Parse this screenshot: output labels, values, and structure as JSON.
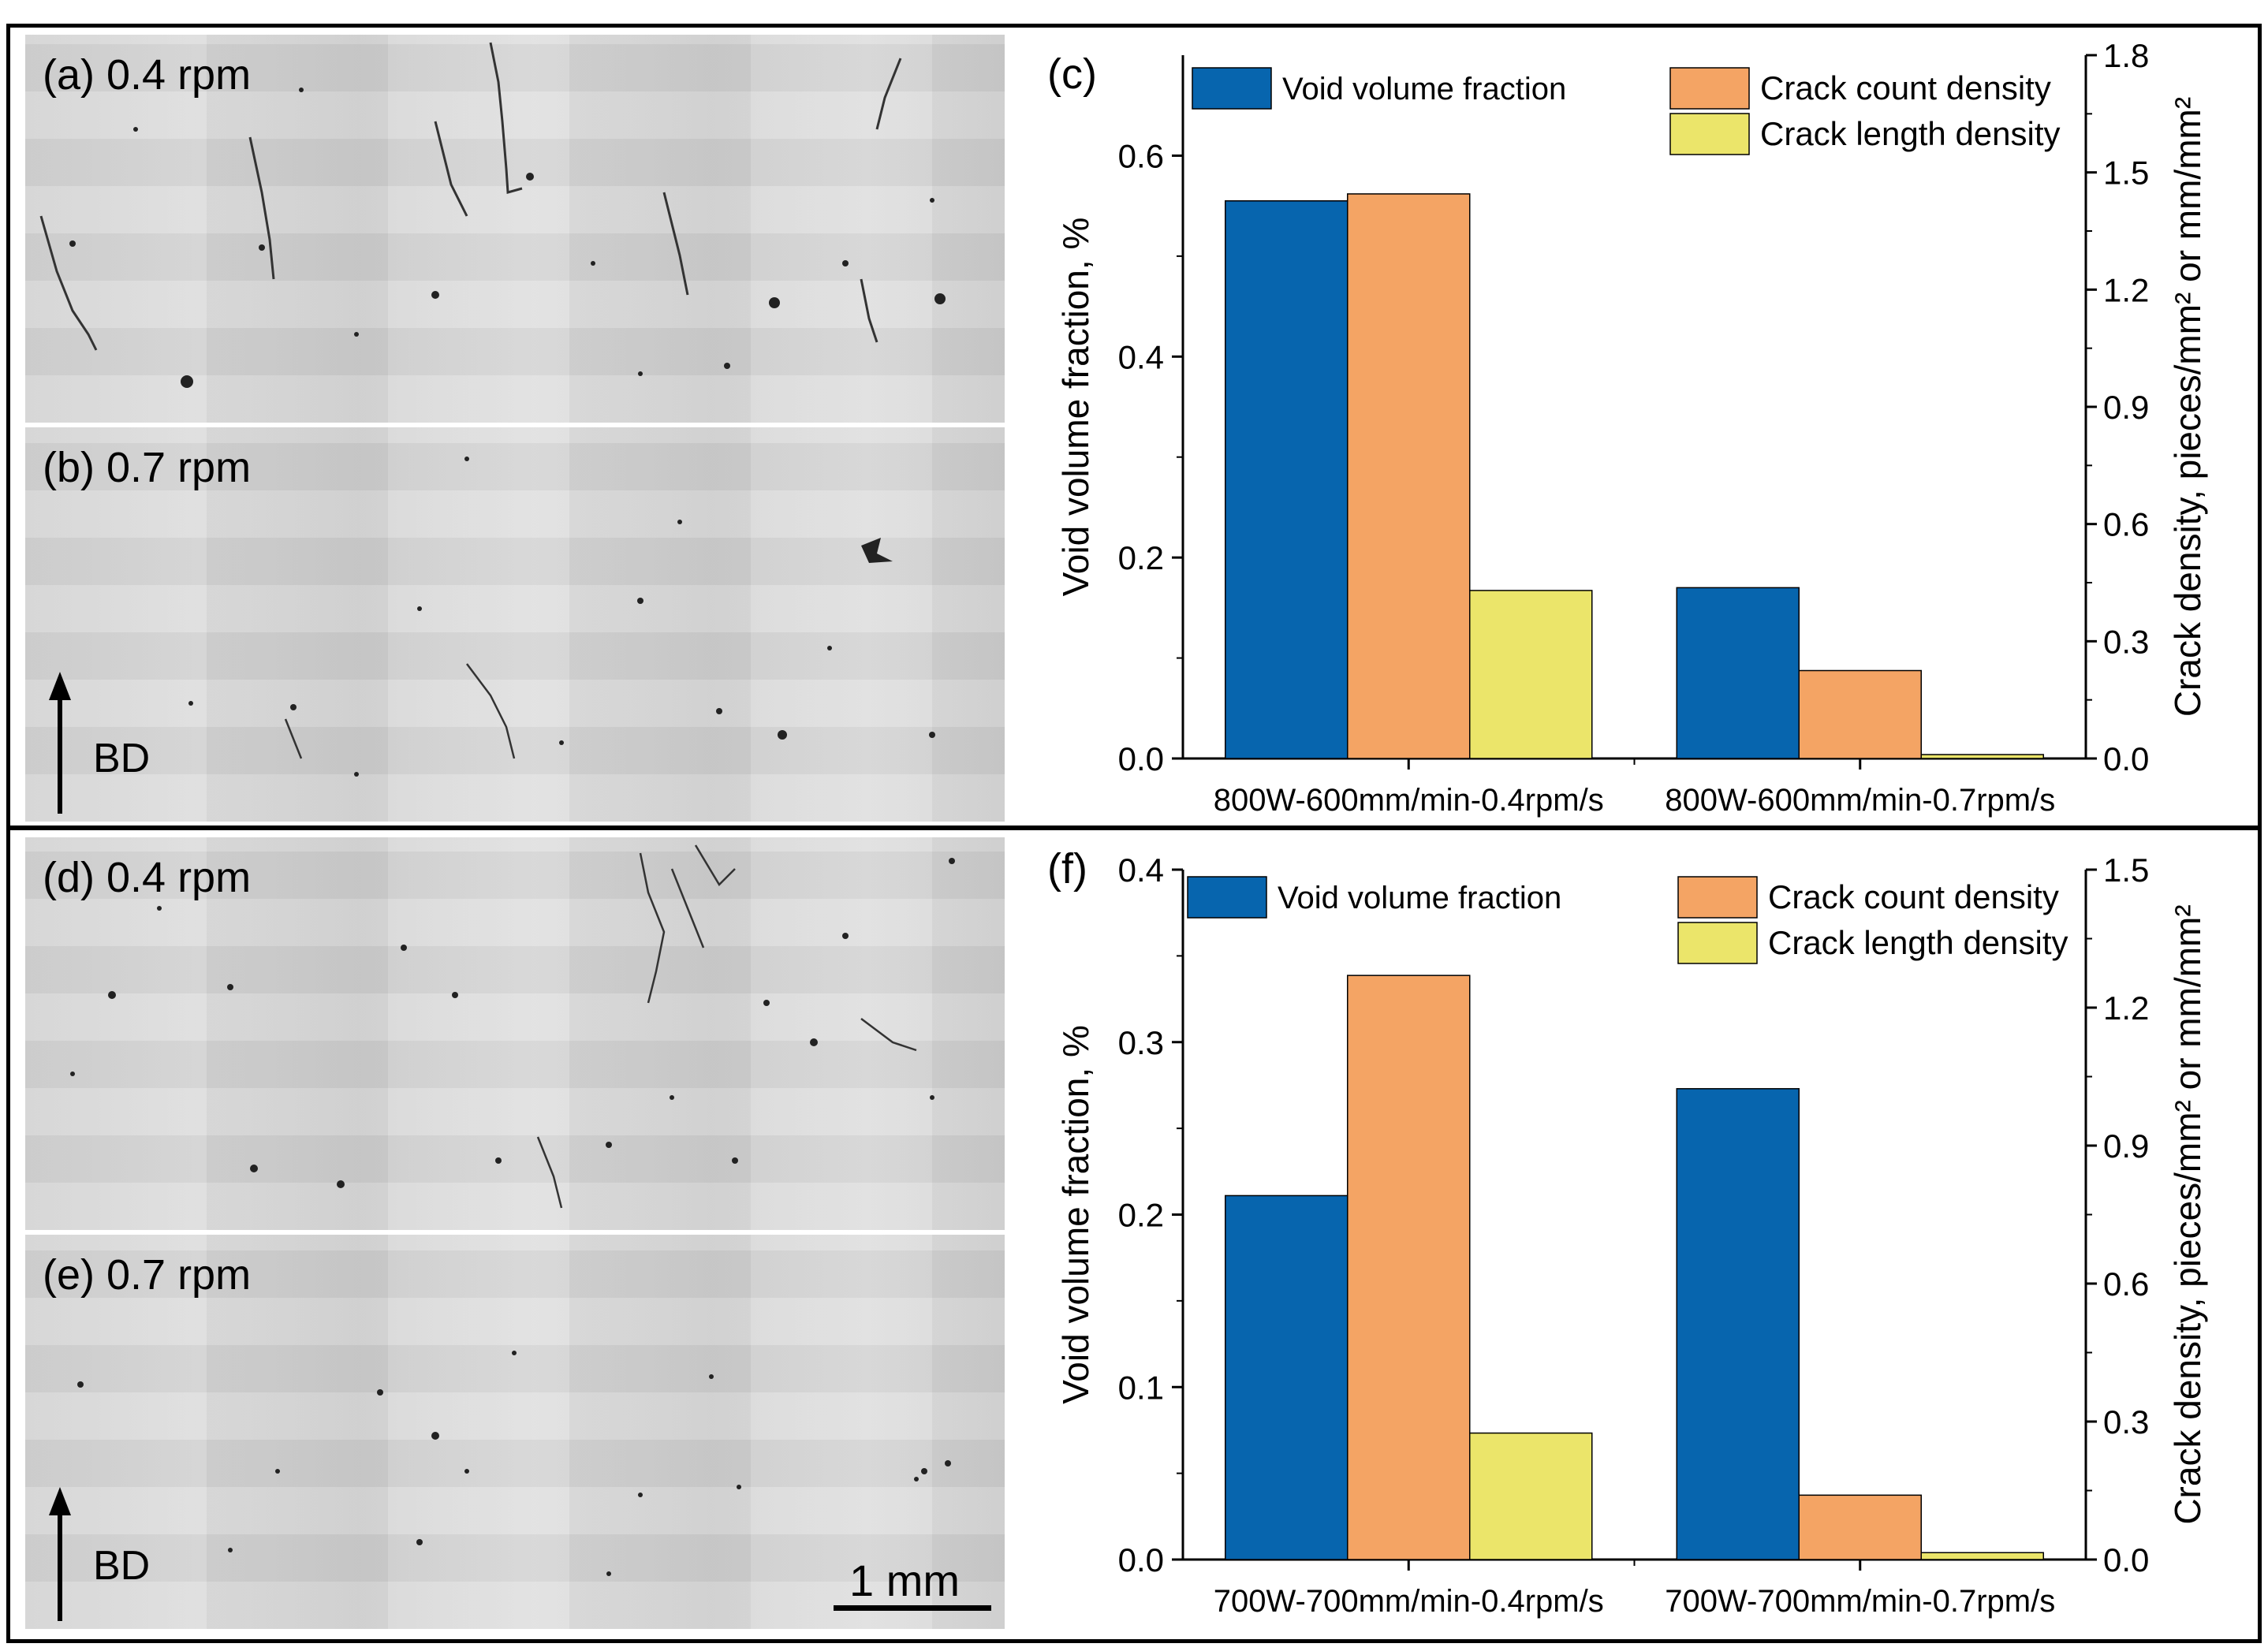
{
  "colors": {
    "void": "#0765ae",
    "crack_count": "#f4a464",
    "crack_length": "#ebe56a",
    "frame": "#000000",
    "micrograph_bg": "#d6d6d6"
  },
  "panels": {
    "a": {
      "label": "(a) 0.4 rpm"
    },
    "b": {
      "label": "(b) 0.7 rpm",
      "bd": "BD"
    },
    "d": {
      "label": "(d) 0.4 rpm"
    },
    "e": {
      "label": "(e) 0.7 rpm",
      "bd": "BD",
      "scale": "1 mm"
    }
  },
  "chart_data": [
    {
      "panel_label": "(c)",
      "type": "bar",
      "categories": [
        "800W-600mm/min-0.4rpm/s",
        "800W-600mm/min-0.7rpm/s"
      ],
      "series": [
        {
          "name": "Void volume fraction",
          "axis": "left",
          "color": "#0765ae",
          "values": [
            0.555,
            0.17
          ]
        },
        {
          "name": "Crack count density",
          "axis": "right",
          "color": "#f4a464",
          "values": [
            1.445,
            0.225
          ]
        },
        {
          "name": "Crack length density",
          "axis": "right",
          "color": "#ebe56a",
          "values": [
            0.43,
            0.01
          ]
        }
      ],
      "ylabel": "Void volume fraction, %",
      "y2label": "Crack density, pieces/mm² or mm/mm²",
      "ylim": [
        0,
        0.7
      ],
      "y2lim": [
        0,
        1.8
      ],
      "yticks": [
        "0.0",
        "0.2",
        "0.4",
        "0.6"
      ],
      "y2ticks": [
        "0.0",
        "0.3",
        "0.6",
        "0.9",
        "1.2",
        "1.5",
        "1.8"
      ],
      "legend": [
        "Void volume fraction",
        "Crack count density",
        "Crack length density"
      ]
    },
    {
      "panel_label": "(f)",
      "type": "bar",
      "categories": [
        "700W-700mm/min-0.4rpm/s",
        "700W-700mm/min-0.7rpm/s"
      ],
      "series": [
        {
          "name": "Void volume fraction",
          "axis": "left",
          "color": "#0765ae",
          "values": [
            0.211,
            0.273
          ]
        },
        {
          "name": "Crack count density",
          "axis": "right",
          "color": "#f4a464",
          "values": [
            1.27,
            0.14
          ]
        },
        {
          "name": "Crack length density",
          "axis": "right",
          "color": "#ebe56a",
          "values": [
            0.275,
            0.015
          ]
        }
      ],
      "ylabel": "Void volume fraction, %",
      "y2label": "Crack density, pieces/mm² or mm/mm²",
      "ylim": [
        0,
        0.4
      ],
      "y2lim": [
        0,
        1.5
      ],
      "yticks": [
        "0.0",
        "0.1",
        "0.2",
        "0.3",
        "0.4"
      ],
      "y2ticks": [
        "0.0",
        "0.3",
        "0.6",
        "0.9",
        "1.2",
        "1.5"
      ],
      "legend": [
        "Void volume fraction",
        "Crack count density",
        "Crack length density"
      ]
    }
  ]
}
